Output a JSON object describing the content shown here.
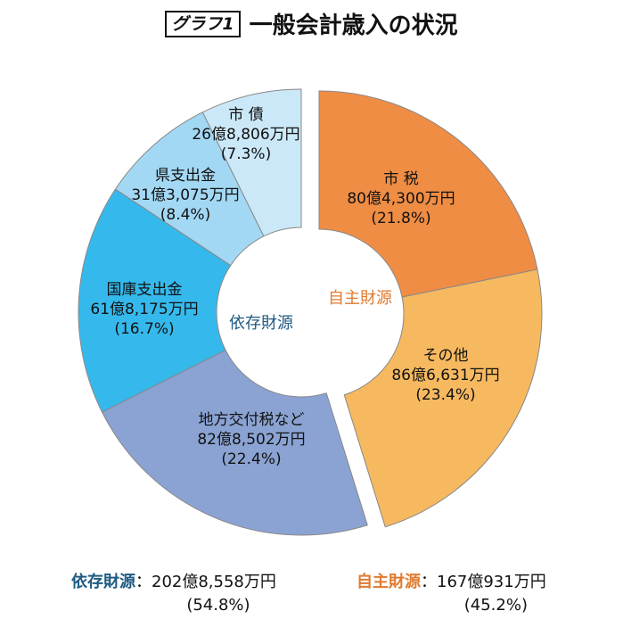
{
  "title": {
    "badge": "グラフ1",
    "text": "一般会計歳入の状況"
  },
  "chart_data": {
    "type": "pie",
    "title": "一般会計歳入の状況",
    "unit": "%",
    "groups": [
      {
        "name": "自主財源",
        "color": "#e07a30",
        "total": "167億931万円",
        "pct": "(45.2%)",
        "slices": [
          0,
          1
        ]
      },
      {
        "name": "依存財源",
        "color": "#1e5a82",
        "total": "202億8,558万円",
        "pct": "(54.8%)",
        "slices": [
          2,
          3,
          4,
          5
        ]
      }
    ],
    "slices": [
      {
        "name": "市 税",
        "amount": "80億4,300万円",
        "pct_label": "(21.8%)",
        "value": 21.8,
        "color": "#ef8d44"
      },
      {
        "name": "その他",
        "amount": "86億6,631万円",
        "pct_label": "(23.4%)",
        "value": 23.4,
        "color": "#f6b960"
      },
      {
        "name": "地方交付税など",
        "amount": "82億8,502万円",
        "pct_label": "(22.4%)",
        "value": 22.4,
        "color": "#8aa3d3"
      },
      {
        "name": "国庫支出金",
        "amount": "61億8,175万円",
        "pct_label": "(16.7%)",
        "value": 16.7,
        "color": "#35b9ec"
      },
      {
        "name": "県支出金",
        "amount": "31億3,075万円",
        "pct_label": "(8.4%)",
        "value": 8.4,
        "color": "#a3d8f4"
      },
      {
        "name": "市 債",
        "amount": "26億8,806万円",
        "pct_label": "(7.3%)",
        "value": 7.3,
        "color": "#cbe8f8"
      }
    ]
  }
}
